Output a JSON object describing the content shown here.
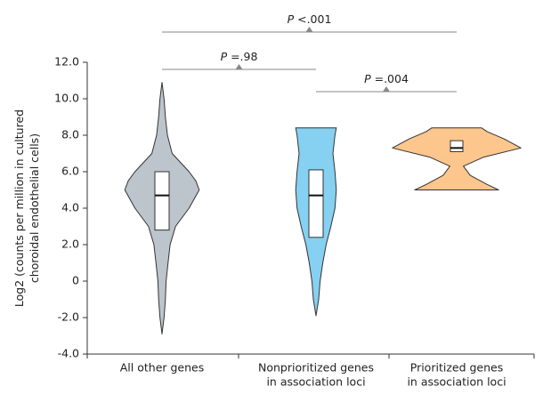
{
  "chart_data": {
    "type": "violin",
    "ylabel": [
      "Log2 (counts per million in cultured",
      "choroidal endothelial cells)"
    ],
    "categories": [
      [
        "All other genes"
      ],
      [
        "Nonprioritized genes",
        "in association loci"
      ],
      [
        "Prioritized genes",
        "in association loci"
      ]
    ],
    "ylim": [
      -4,
      12
    ],
    "yticks": [
      {
        "value": -4,
        "label": "-4.0"
      },
      {
        "value": -2,
        "label": "-2.0"
      },
      0,
      {
        "value": 2,
        "label": "2.0"
      },
      {
        "value": 4,
        "label": "4.0"
      },
      {
        "value": 6,
        "label": "6.0"
      },
      {
        "value": 8,
        "label": "8.0"
      },
      {
        "value": 10,
        "label": "10.0"
      },
      {
        "value": 12,
        "label": "12.0"
      }
    ],
    "groups": [
      {
        "color": "#bcc4cc",
        "q1": 2.8,
        "median": 4.7,
        "q3": 6.0,
        "density_y": [
          -2.9,
          -2,
          -1,
          0,
          1,
          2,
          3,
          4,
          5,
          5.5,
          6,
          7,
          8,
          9,
          10,
          10.9
        ],
        "density": [
          0,
          0.03,
          0.05,
          0.06,
          0.09,
          0.12,
          0.2,
          0.4,
          0.55,
          0.5,
          0.4,
          0.15,
          0.08,
          0.05,
          0.03,
          0
        ]
      },
      {
        "color": "#86d0f2",
        "q1": 2.4,
        "median": 4.7,
        "q3": 6.1,
        "density_y": [
          -1.9,
          -1,
          0,
          1,
          2,
          3,
          4,
          5,
          6,
          7,
          8,
          8.4
        ],
        "density": [
          0,
          0.04,
          0.06,
          0.1,
          0.15,
          0.22,
          0.28,
          0.3,
          0.28,
          0.25,
          0.28,
          0.3
        ]
      },
      {
        "color": "#fcc68c",
        "q1": 7.1,
        "median": 7.3,
        "q3": 7.7,
        "density_y": [
          5.0,
          5.3,
          5.8,
          6.3,
          6.8,
          7.3,
          7.8,
          8.2,
          8.4
        ],
        "density": [
          0.62,
          0.45,
          0.2,
          0.1,
          0.4,
          0.95,
          0.7,
          0.45,
          0.37
        ]
      }
    ],
    "annotations": [
      {
        "italic": "P",
        "text": " =.98"
      },
      {
        "italic": "P",
        "text": " =.004"
      },
      {
        "italic": "P",
        "text": " <.001"
      }
    ]
  }
}
